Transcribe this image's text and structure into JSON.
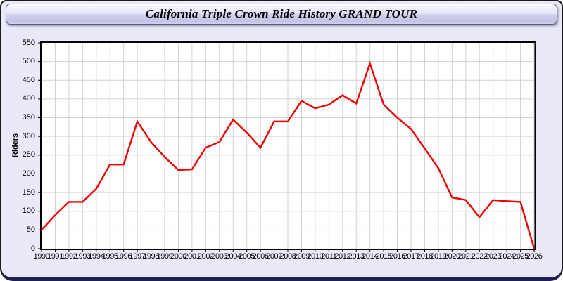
{
  "window": {
    "title": "California Triple Crown Ride History GRAND TOUR"
  },
  "chart_data": {
    "type": "line",
    "title": "California Triple Crown Ride History GRAND TOUR",
    "y_axis_title": "Riders",
    "x_years": [
      1990,
      1991,
      1992,
      1993,
      1994,
      1995,
      1996,
      1997,
      1998,
      1999,
      2000,
      2001,
      2002,
      2003,
      2004,
      2005,
      2006,
      2007,
      2008,
      2009,
      2010,
      2011,
      2012,
      2013,
      2014,
      2015,
      2016,
      2017,
      2018,
      2019,
      2020,
      2021,
      2022,
      2023,
      2024,
      2025,
      2026
    ],
    "values": [
      50,
      90,
      125,
      125,
      160,
      225,
      225,
      340,
      285,
      245,
      210,
      212,
      270,
      285,
      345,
      310,
      270,
      340,
      340,
      395,
      375,
      385,
      410,
      388,
      495,
      385,
      350,
      320,
      268,
      215,
      137,
      130,
      84,
      130,
      127,
      125,
      0
    ],
    "ylim": [
      0,
      550
    ],
    "y_tick_step": 50,
    "grid": true,
    "legend": "none",
    "line_color": "#ee0000",
    "grid_color": "#d2d2d2",
    "plot_background": "#ffffff",
    "panel_background": "#e9e9f8",
    "bottom_bar_color": "#1e1e55"
  }
}
